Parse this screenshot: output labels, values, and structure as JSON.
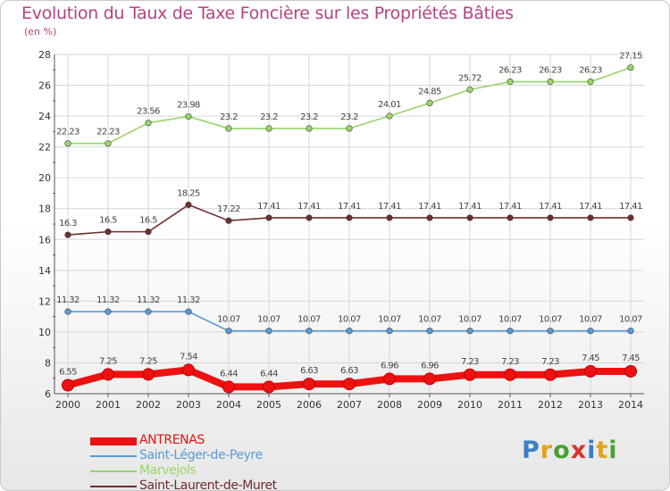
{
  "title": "Evolution du Taux de Taxe Foncière sur les Propriétés Bâties",
  "unit": "(en %)",
  "logo": {
    "letters": [
      "P",
      "r",
      "o",
      "x",
      "i",
      "t",
      "i"
    ],
    "colors": [
      "#3d7fc4",
      "#e2a21b",
      "#4aa02c",
      "#d9342b",
      "#3d7fc4",
      "#e2a21b",
      "#4aa02c"
    ]
  },
  "chart_data": {
    "type": "line",
    "title": "Evolution du Taux de Taxe Foncière sur les Propriétés Bâties",
    "ylabel": "(en %)",
    "xlabel": "",
    "ylim": [
      6,
      28
    ],
    "yticks": [
      "6",
      "8",
      "10",
      "12",
      "14",
      "16",
      "18",
      "20",
      "22",
      "24",
      "26",
      "28"
    ],
    "categories": [
      "2000",
      "2001",
      "2002",
      "2003",
      "2004",
      "2005",
      "2006",
      "2007",
      "2008",
      "2009",
      "2010",
      "2011",
      "2012",
      "2013",
      "2014"
    ],
    "grid": true,
    "legend_position": "bottom-left",
    "series": [
      {
        "name": "ANTRENAS",
        "color": "#ee1111",
        "emphasis": true,
        "values": [
          6.55,
          7.25,
          7.25,
          7.54,
          6.44,
          6.44,
          6.63,
          6.63,
          6.96,
          6.96,
          7.23,
          7.23,
          7.23,
          7.45,
          7.45
        ],
        "labels": [
          "6.55",
          "7.25",
          "7.25",
          "7.54",
          "6.44",
          "6.44",
          "6.63",
          "6.63",
          "6.96",
          "6.96",
          "7.23",
          "7.23",
          "7.23",
          "7.45",
          "7.45"
        ]
      },
      {
        "name": "Saint-Léger-de-Peyre",
        "color": "#5b9bd5",
        "values": [
          11.32,
          11.32,
          11.32,
          11.32,
          10.07,
          10.07,
          10.07,
          10.07,
          10.07,
          10.07,
          10.07,
          10.07,
          10.07,
          10.07,
          10.07
        ],
        "labels": [
          "11.32",
          "11.32",
          "11.32",
          "11.32",
          "10.07",
          "10.07",
          "10.07",
          "10.07",
          "10.07",
          "10.07",
          "10.07",
          "10.07",
          "10.07",
          "10.07",
          "10.07"
        ]
      },
      {
        "name": "Marvejols",
        "color": "#99d46a",
        "values": [
          22.23,
          22.23,
          23.56,
          23.98,
          23.2,
          23.2,
          23.2,
          23.2,
          24.01,
          24.85,
          25.72,
          26.23,
          26.23,
          26.23,
          27.15
        ],
        "labels": [
          "22.23",
          "22.23",
          "23.56",
          "23.98",
          "23.2",
          "23.2",
          "23.2",
          "23.2",
          "24.01",
          "24.85",
          "25.72",
          "26.23",
          "26.23",
          "26.23",
          "27.15"
        ]
      },
      {
        "name": "Saint-Laurent-de-Muret",
        "color": "#6e2e2e",
        "values": [
          16.3,
          16.5,
          16.5,
          18.25,
          17.22,
          17.41,
          17.41,
          17.41,
          17.41,
          17.41,
          17.41,
          17.41,
          17.41,
          17.41,
          17.41
        ],
        "labels": [
          "16.3",
          "16.5",
          "16.5",
          "18.25",
          "17.22",
          "17.41",
          "17.41",
          "17.41",
          "17.41",
          "17.41",
          "17.41",
          "17.41",
          "17.41",
          "17.41",
          "17.41"
        ]
      }
    ]
  }
}
